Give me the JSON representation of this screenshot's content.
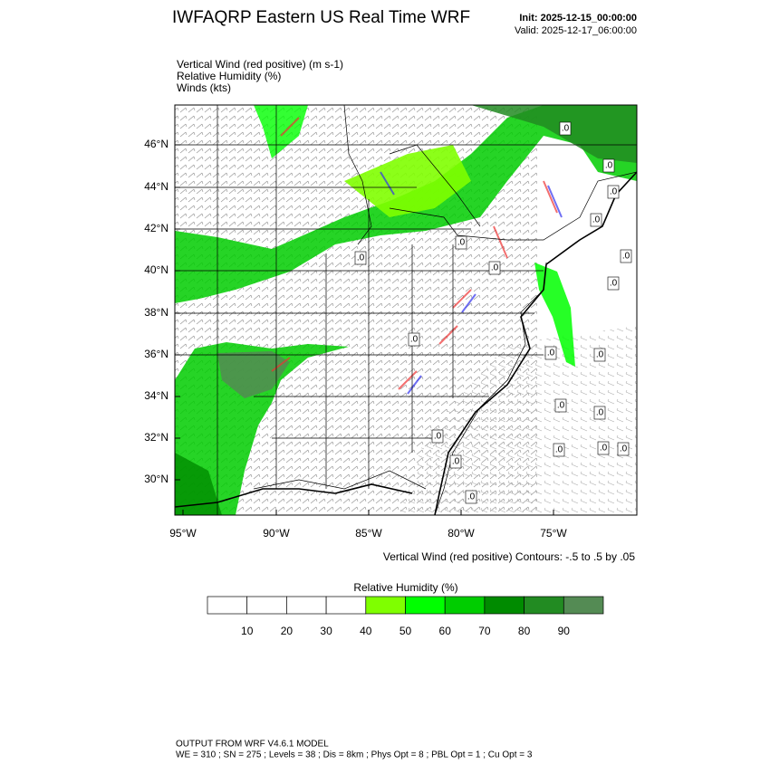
{
  "header": {
    "title": "IWFAQRP Eastern US Real Time WRF",
    "init": "Init: 2025-12-15_00:00:00",
    "valid": "Valid: 2025-12-17_06:00:00"
  },
  "fields": [
    "Vertical Wind (red positive)   (m s-1)",
    "Relative Humidity   (%)",
    "Winds   (kts)"
  ],
  "map": {
    "lat_labels": [
      "46°N",
      "44°N",
      "42°N",
      "40°N",
      "38°N",
      "36°N",
      "34°N",
      "32°N",
      "30°N"
    ],
    "lon_labels": [
      "95°W",
      "90°W",
      "85°W",
      "80°W",
      "75°W"
    ],
    "contour_labels": [
      ".0",
      ".0",
      ".0",
      ".0",
      ".0",
      ".0",
      ".0",
      ".0",
      ".0",
      ".0",
      ".0",
      ".0",
      ".0",
      ".0",
      ".0",
      ".0",
      ".0",
      ".0",
      ".0",
      ".0"
    ],
    "contour_note": "Vertical Wind (red positive) Contours: -.5 to .5 by .05"
  },
  "colorbar": {
    "title": "Relative Humidity  (%)",
    "colors": [
      "#ffffff",
      "#ffffff",
      "#ffffff",
      "#ffffff",
      "#7fff00",
      "#00ff00",
      "#00cd00",
      "#008b00",
      "#228b22",
      "#548b54"
    ],
    "labels": [
      "10",
      "20",
      "30",
      "40",
      "50",
      "60",
      "70",
      "80",
      "90"
    ]
  },
  "footer": [
    "OUTPUT FROM WRF V4.6.1 MODEL",
    "WE = 310 ; SN = 275 ; Levels = 38 ; Dis = 8km ; Phys Opt = 8 ; PBL Opt = 1 ; Cu Opt = 3"
  ]
}
